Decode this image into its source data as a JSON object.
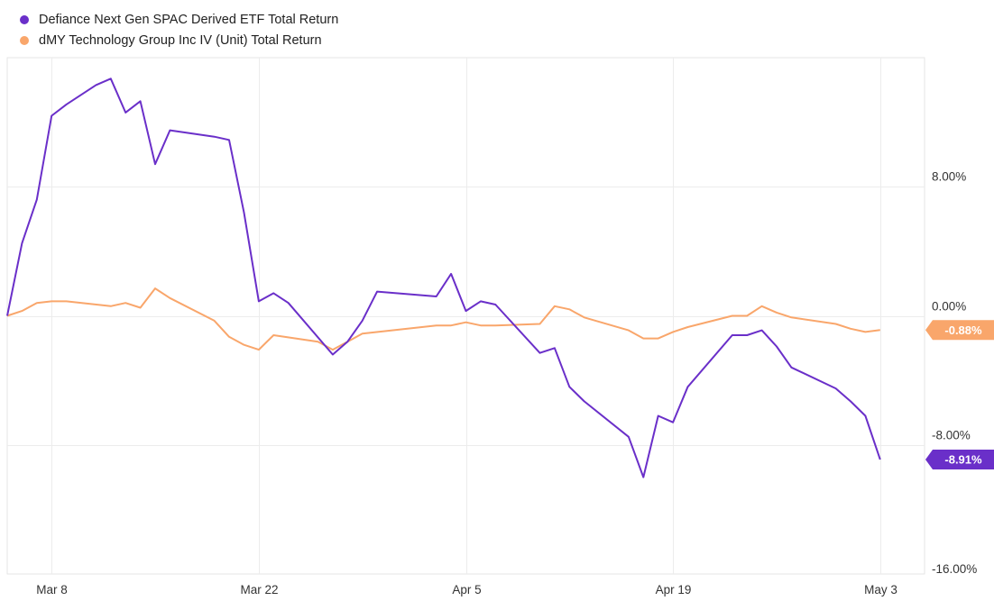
{
  "legend": [
    {
      "name": "Defiance Next Gen SPAC Derived ETF Total Return",
      "color": "#6a2fc9"
    },
    {
      "name": "dMY Technology Group Inc IV (Unit) Total Return",
      "color": "#f9a66b"
    }
  ],
  "chart_data": {
    "type": "line",
    "title": "",
    "xlabel": "",
    "ylabel": "",
    "ylim": [
      -16,
      16
    ],
    "xlim": [
      "2021-03-05",
      "2021-05-06"
    ],
    "y_ticks": [
      {
        "value": 8,
        "label": "8.00%"
      },
      {
        "value": 0,
        "label": "0.00%"
      },
      {
        "value": -8,
        "label": "-8.00%"
      },
      {
        "value": -16,
        "label": "-16.00%"
      }
    ],
    "x_ticks": [
      {
        "date": "2021-03-08",
        "label": "Mar 8"
      },
      {
        "date": "2021-03-22",
        "label": "Mar 22"
      },
      {
        "date": "2021-04-05",
        "label": "Apr 5"
      },
      {
        "date": "2021-04-19",
        "label": "Apr 19"
      },
      {
        "date": "2021-05-03",
        "label": "May 3"
      }
    ],
    "grid": true,
    "legend_position": "top-left",
    "series": [
      {
        "name": "Defiance Next Gen SPAC Derived ETF Total Return",
        "color": "#6a2fc9",
        "end_label": "-8.91%",
        "points": [
          [
            "2021-03-05",
            0.0
          ],
          [
            "2021-03-06",
            4.5
          ],
          [
            "2021-03-07",
            7.2
          ],
          [
            "2021-03-08",
            12.4
          ],
          [
            "2021-03-09",
            13.1
          ],
          [
            "2021-03-11",
            14.3
          ],
          [
            "2021-03-12",
            14.7
          ],
          [
            "2021-03-13",
            12.6
          ],
          [
            "2021-03-14",
            13.3
          ],
          [
            "2021-03-15",
            9.4
          ],
          [
            "2021-03-16",
            11.5
          ],
          [
            "2021-03-19",
            11.1
          ],
          [
            "2021-03-20",
            10.9
          ],
          [
            "2021-03-21",
            6.4
          ],
          [
            "2021-03-22",
            0.9
          ],
          [
            "2021-03-23",
            1.4
          ],
          [
            "2021-03-24",
            0.8
          ],
          [
            "2021-03-27",
            -2.4
          ],
          [
            "2021-03-28",
            -1.6
          ],
          [
            "2021-03-29",
            -0.3
          ],
          [
            "2021-03-30",
            1.5
          ],
          [
            "2021-04-03",
            1.2
          ],
          [
            "2021-04-04",
            2.6
          ],
          [
            "2021-04-05",
            0.3
          ],
          [
            "2021-04-06",
            0.9
          ],
          [
            "2021-04-07",
            0.7
          ],
          [
            "2021-04-10",
            -2.3
          ],
          [
            "2021-04-11",
            -2.0
          ],
          [
            "2021-04-12",
            -4.4
          ],
          [
            "2021-04-13",
            -5.3
          ],
          [
            "2021-04-16",
            -7.5
          ],
          [
            "2021-04-17",
            -10.0
          ],
          [
            "2021-04-18",
            -6.2
          ],
          [
            "2021-04-19",
            -6.6
          ],
          [
            "2021-04-20",
            -4.4
          ],
          [
            "2021-04-23",
            -1.2
          ],
          [
            "2021-04-24",
            -1.2
          ],
          [
            "2021-04-25",
            -0.9
          ],
          [
            "2021-04-26",
            -1.9
          ],
          [
            "2021-04-27",
            -3.2
          ],
          [
            "2021-04-30",
            -4.5
          ],
          [
            "2021-05-01",
            -5.3
          ],
          [
            "2021-05-02",
            -6.2
          ],
          [
            "2021-05-03",
            -8.91
          ]
        ]
      },
      {
        "name": "dMY Technology Group Inc IV (Unit) Total Return",
        "color": "#f9a66b",
        "end_label": "-0.88%",
        "points": [
          [
            "2021-03-05",
            0.0
          ],
          [
            "2021-03-06",
            0.3
          ],
          [
            "2021-03-07",
            0.8
          ],
          [
            "2021-03-08",
            0.9
          ],
          [
            "2021-03-09",
            0.9
          ],
          [
            "2021-03-12",
            0.6
          ],
          [
            "2021-03-13",
            0.8
          ],
          [
            "2021-03-14",
            0.5
          ],
          [
            "2021-03-15",
            1.7
          ],
          [
            "2021-03-16",
            1.1
          ],
          [
            "2021-03-19",
            -0.3
          ],
          [
            "2021-03-20",
            -1.3
          ],
          [
            "2021-03-21",
            -1.8
          ],
          [
            "2021-03-22",
            -2.1
          ],
          [
            "2021-03-23",
            -1.2
          ],
          [
            "2021-03-26",
            -1.6
          ],
          [
            "2021-03-27",
            -2.1
          ],
          [
            "2021-03-28",
            -1.6
          ],
          [
            "2021-03-29",
            -1.1
          ],
          [
            "2021-04-03",
            -0.6
          ],
          [
            "2021-04-04",
            -0.6
          ],
          [
            "2021-04-05",
            -0.4
          ],
          [
            "2021-04-06",
            -0.6
          ],
          [
            "2021-04-07",
            -0.6
          ],
          [
            "2021-04-10",
            -0.5
          ],
          [
            "2021-04-11",
            0.6
          ],
          [
            "2021-04-12",
            0.4
          ],
          [
            "2021-04-13",
            -0.1
          ],
          [
            "2021-04-16",
            -0.9
          ],
          [
            "2021-04-17",
            -1.4
          ],
          [
            "2021-04-18",
            -1.4
          ],
          [
            "2021-04-19",
            -1.0
          ],
          [
            "2021-04-20",
            -0.7
          ],
          [
            "2021-04-23",
            0.0
          ],
          [
            "2021-04-24",
            0.0
          ],
          [
            "2021-04-25",
            0.6
          ],
          [
            "2021-04-26",
            0.2
          ],
          [
            "2021-04-27",
            -0.1
          ],
          [
            "2021-04-30",
            -0.5
          ],
          [
            "2021-05-01",
            -0.8
          ],
          [
            "2021-05-02",
            -1.0
          ],
          [
            "2021-05-03",
            -0.88
          ]
        ]
      }
    ]
  }
}
